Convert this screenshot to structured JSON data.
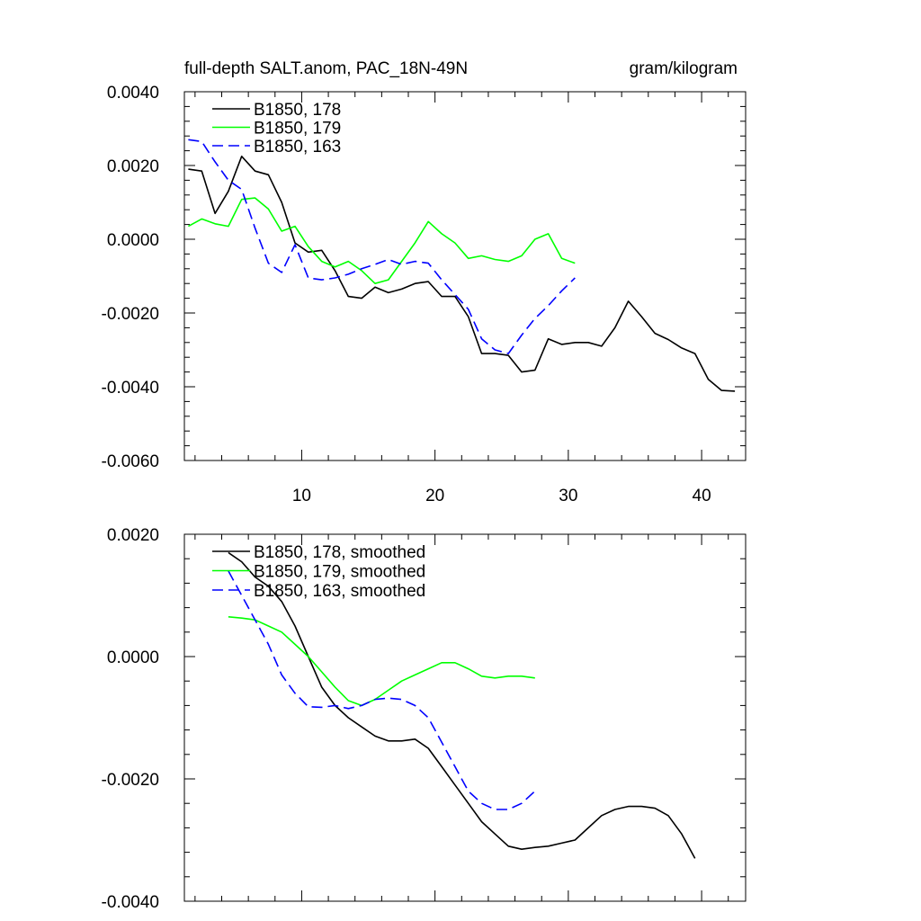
{
  "chart_data": [
    {
      "type": "line",
      "title_left": "full-depth SALT.anom, PAC_18N-49N",
      "title_right": "gram/kilogram",
      "xlabel": "",
      "ylabel": "",
      "xlim": [
        1.2,
        43.3
      ],
      "ylim": [
        -0.006,
        0.004
      ],
      "x_ticks": [
        10,
        20,
        30,
        40
      ],
      "x_tick_labels": [
        "10",
        "20",
        "30",
        "40"
      ],
      "y_ticks": [
        0.004,
        0.002,
        0.0,
        -0.002,
        -0.004,
        -0.006
      ],
      "y_tick_labels": [
        "0.0040",
        "0.0020",
        "0.0000",
        "-0.0020",
        "-0.0040",
        "-0.0060"
      ],
      "legend_position": "top-left",
      "series": [
        {
          "name": "B1850, 178",
          "color": "#000000",
          "dash": "solid",
          "x": [
            1.5,
            2.5,
            3.5,
            4.5,
            5.5,
            6.5,
            7.5,
            8.5,
            9.5,
            10.5,
            11.5,
            12.5,
            13.5,
            14.5,
            15.5,
            16.5,
            17.5,
            18.5,
            19.5,
            20.5,
            21.5,
            22.5,
            23.5,
            24.5,
            25.5,
            26.5,
            27.5,
            28.5,
            29.5,
            30.5,
            31.5,
            32.5,
            33.5,
            34.5,
            35.5,
            36.5,
            37.5,
            38.5,
            39.5,
            40.5,
            41.5,
            42.5
          ],
          "values": [
            0.0019,
            0.00185,
            0.0007,
            0.0013,
            0.00225,
            0.00185,
            0.00175,
            0.001,
            -0.0001,
            -0.00035,
            -0.0003,
            -0.00085,
            -0.00155,
            -0.0016,
            -0.0013,
            -0.00145,
            -0.00135,
            -0.0012,
            -0.00115,
            -0.00155,
            -0.00155,
            -0.0021,
            -0.0031,
            -0.0031,
            -0.00315,
            -0.0036,
            -0.00355,
            -0.0027,
            -0.00285,
            -0.0028,
            -0.0028,
            -0.0029,
            -0.0024,
            -0.00168,
            -0.0021,
            -0.00255,
            -0.00272,
            -0.00295,
            -0.0031,
            -0.0038,
            -0.0041,
            -0.00412
          ]
        },
        {
          "name": "B1850, 179",
          "color": "#00ff00",
          "dash": "solid",
          "x": [
            1.5,
            2.5,
            3.5,
            4.5,
            5.5,
            6.5,
            7.5,
            8.5,
            9.5,
            10.5,
            11.5,
            12.5,
            13.5,
            14.5,
            15.5,
            16.5,
            17.5,
            18.5,
            19.5,
            20.5,
            21.5,
            22.5,
            23.5,
            24.5,
            25.5,
            26.5,
            27.5,
            28.5,
            29.5,
            30.5
          ],
          "values": [
            0.00035,
            0.00055,
            0.00042,
            0.00035,
            0.00108,
            0.00112,
            0.00082,
            0.00022,
            0.00035,
            -0.0002,
            -0.0006,
            -0.00075,
            -0.0006,
            -0.00085,
            -0.0012,
            -0.0011,
            -0.0006,
            -0.0001,
            0.00048,
            0.00015,
            -0.0001,
            -0.00052,
            -0.00045,
            -0.00055,
            -0.0006,
            -0.00045,
            0.0,
            0.00015,
            -0.00052,
            -0.00065
          ]
        },
        {
          "name": "B1850, 163",
          "color": "#0000ff",
          "dash": "dashed",
          "x": [
            1.5,
            2.5,
            3.5,
            4.5,
            5.5,
            6.5,
            7.5,
            8.5,
            9.5,
            10.5,
            11.5,
            12.5,
            13.5,
            14.5,
            15.5,
            16.5,
            17.5,
            18.5,
            19.5,
            20.5,
            21.5,
            22.5,
            23.5,
            24.5,
            25.5,
            26.5,
            27.5,
            28.5,
            29.5,
            30.5
          ],
          "values": [
            0.0027,
            0.00265,
            0.0021,
            0.0016,
            0.00135,
            0.0003,
            -0.00065,
            -0.0009,
            -0.00015,
            -0.00105,
            -0.0011,
            -0.00105,
            -0.00095,
            -0.0008,
            -0.00068,
            -0.00055,
            -0.00068,
            -0.0006,
            -0.00065,
            -0.0011,
            -0.0015,
            -0.0019,
            -0.0027,
            -0.003,
            -0.0031,
            -0.0026,
            -0.00215,
            -0.0018,
            -0.0014,
            -0.00105
          ]
        }
      ]
    },
    {
      "type": "line",
      "title_left": "",
      "title_right": "",
      "xlabel": "",
      "ylabel": "",
      "xlim": [
        1.2,
        43.3
      ],
      "ylim": [
        -0.004,
        0.002
      ],
      "x_ticks": [
        10,
        20,
        30,
        40
      ],
      "x_tick_labels": [],
      "y_ticks": [
        0.002,
        0.0,
        -0.002,
        -0.004
      ],
      "y_tick_labels": [
        "0.0020",
        "0.0000",
        "-0.0020",
        "-0.0040"
      ],
      "legend_position": "top-left",
      "series": [
        {
          "name": "B1850, 178, smoothed",
          "color": "#000000",
          "dash": "solid",
          "x": [
            4.5,
            5.5,
            6.5,
            7.5,
            8.5,
            9.5,
            10.5,
            11.5,
            12.5,
            13.5,
            14.5,
            15.5,
            16.5,
            17.5,
            18.5,
            19.5,
            20.5,
            21.5,
            22.5,
            23.5,
            24.5,
            25.5,
            26.5,
            27.5,
            28.5,
            29.5,
            30.5,
            31.5,
            32.5,
            33.5,
            34.5,
            35.5,
            36.5,
            37.5,
            38.5,
            39.5
          ],
          "values": [
            0.0017,
            0.00155,
            0.0013,
            0.00115,
            0.0009,
            0.0005,
            0.0,
            -0.0005,
            -0.0008,
            -0.001,
            -0.00115,
            -0.0013,
            -0.00138,
            -0.00138,
            -0.00135,
            -0.0015,
            -0.0018,
            -0.0021,
            -0.0024,
            -0.0027,
            -0.0029,
            -0.0031,
            -0.00315,
            -0.00312,
            -0.0031,
            -0.00305,
            -0.003,
            -0.0028,
            -0.0026,
            -0.0025,
            -0.00245,
            -0.00245,
            -0.00248,
            -0.0026,
            -0.0029,
            -0.0033
          ]
        },
        {
          "name": "B1850, 179, smoothed",
          "color": "#00ff00",
          "dash": "solid",
          "x": [
            4.5,
            5.5,
            6.5,
            7.5,
            8.5,
            9.5,
            10.5,
            11.5,
            12.5,
            13.5,
            14.5,
            15.5,
            16.5,
            17.5,
            18.5,
            19.5,
            20.5,
            21.5,
            22.5,
            23.5,
            24.5,
            25.5,
            26.5,
            27.5
          ],
          "values": [
            0.00065,
            0.00063,
            0.0006,
            0.0005,
            0.0004,
            0.0002,
            0.0,
            -0.00025,
            -0.0005,
            -0.00072,
            -0.0008,
            -0.0007,
            -0.00055,
            -0.0004,
            -0.0003,
            -0.0002,
            -0.0001,
            -0.0001,
            -0.0002,
            -0.00032,
            -0.00035,
            -0.00032,
            -0.00032,
            -0.00035
          ]
        },
        {
          "name": "B1850, 163, smoothed",
          "color": "#0000ff",
          "dash": "dashed",
          "x": [
            4.5,
            5.5,
            6.5,
            7.5,
            8.5,
            9.5,
            10.5,
            11.5,
            12.5,
            13.5,
            14.5,
            15.5,
            16.5,
            17.5,
            18.5,
            19.5,
            20.5,
            21.5,
            22.5,
            23.5,
            24.5,
            25.5,
            26.5,
            27.5
          ],
          "values": [
            0.0014,
            0.001,
            0.0006,
            0.0002,
            -0.0003,
            -0.0006,
            -0.00082,
            -0.00083,
            -0.0008,
            -0.00085,
            -0.0008,
            -0.0007,
            -0.00068,
            -0.0007,
            -0.0008,
            -0.001,
            -0.0014,
            -0.0018,
            -0.0022,
            -0.0024,
            -0.0025,
            -0.0025,
            -0.0024,
            -0.0022
          ]
        }
      ]
    }
  ]
}
